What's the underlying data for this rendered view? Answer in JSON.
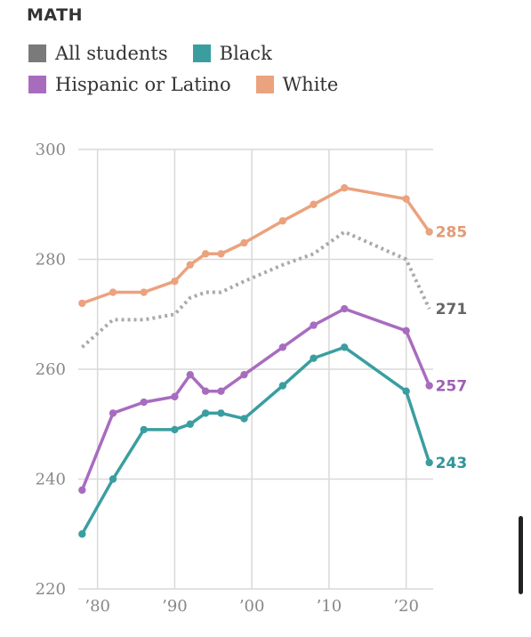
{
  "title": "MATH",
  "legend": [
    {
      "label": "All students",
      "color": "#7a7a7a"
    },
    {
      "label": "Black",
      "color": "#3a9ea0"
    },
    {
      "label": "Hispanic or Latino",
      "color": "#a86cbf"
    },
    {
      "label": "White",
      "color": "#eba27e"
    }
  ],
  "chart_data": {
    "type": "line",
    "ylim": [
      220,
      300
    ],
    "yticks": [
      220,
      240,
      260,
      280,
      300
    ],
    "xlim": [
      1977.5,
      2023.5
    ],
    "xticks": [
      {
        "value": 1980,
        "label": "’80"
      },
      {
        "value": 1990,
        "label": "’90"
      },
      {
        "value": 2000,
        "label": "’00"
      },
      {
        "value": 2010,
        "label": "’10"
      },
      {
        "value": 2020,
        "label": "’20"
      }
    ],
    "series": [
      {
        "name": "White",
        "color": "#eba27e",
        "style": "solid",
        "markers": true,
        "end_label": "285",
        "x": [
          1978,
          1982,
          1986,
          1990,
          1992,
          1994,
          1996,
          1999,
          2004,
          2008,
          2012,
          2020,
          2023
        ],
        "y": [
          272,
          274,
          274,
          276,
          279,
          281,
          281,
          283,
          287,
          290,
          293,
          291,
          285
        ]
      },
      {
        "name": "All students",
        "color": "#aaaaaa",
        "style": "dotted",
        "markers": false,
        "end_label": "271",
        "x": [
          1978,
          1982,
          1986,
          1990,
          1992,
          1994,
          1996,
          1999,
          2004,
          2008,
          2012,
          2020,
          2023
        ],
        "y": [
          264,
          269,
          269,
          270,
          273,
          274,
          274,
          276,
          279,
          281,
          285,
          280,
          271
        ]
      },
      {
        "name": "Hispanic or Latino",
        "color": "#a86cbf",
        "style": "solid",
        "markers": true,
        "end_label": "257",
        "x": [
          1978,
          1982,
          1986,
          1990,
          1992,
          1994,
          1996,
          1999,
          2004,
          2008,
          2012,
          2020,
          2023
        ],
        "y": [
          238,
          252,
          254,
          255,
          259,
          256,
          256,
          259,
          264,
          268,
          271,
          267,
          257
        ]
      },
      {
        "name": "Black",
        "color": "#3a9ea0",
        "style": "solid",
        "markers": true,
        "end_label": "243",
        "x": [
          1978,
          1982,
          1986,
          1990,
          1992,
          1994,
          1996,
          1999,
          2004,
          2008,
          2012,
          2020,
          2023
        ],
        "y": [
          230,
          240,
          249,
          249,
          250,
          252,
          252,
          251,
          257,
          262,
          264,
          256,
          243
        ]
      }
    ],
    "end_label_colors": {
      "White": "#e39a74",
      "All students": "#666666",
      "Hispanic or Latino": "#9e5fb6",
      "Black": "#2f9598"
    }
  }
}
